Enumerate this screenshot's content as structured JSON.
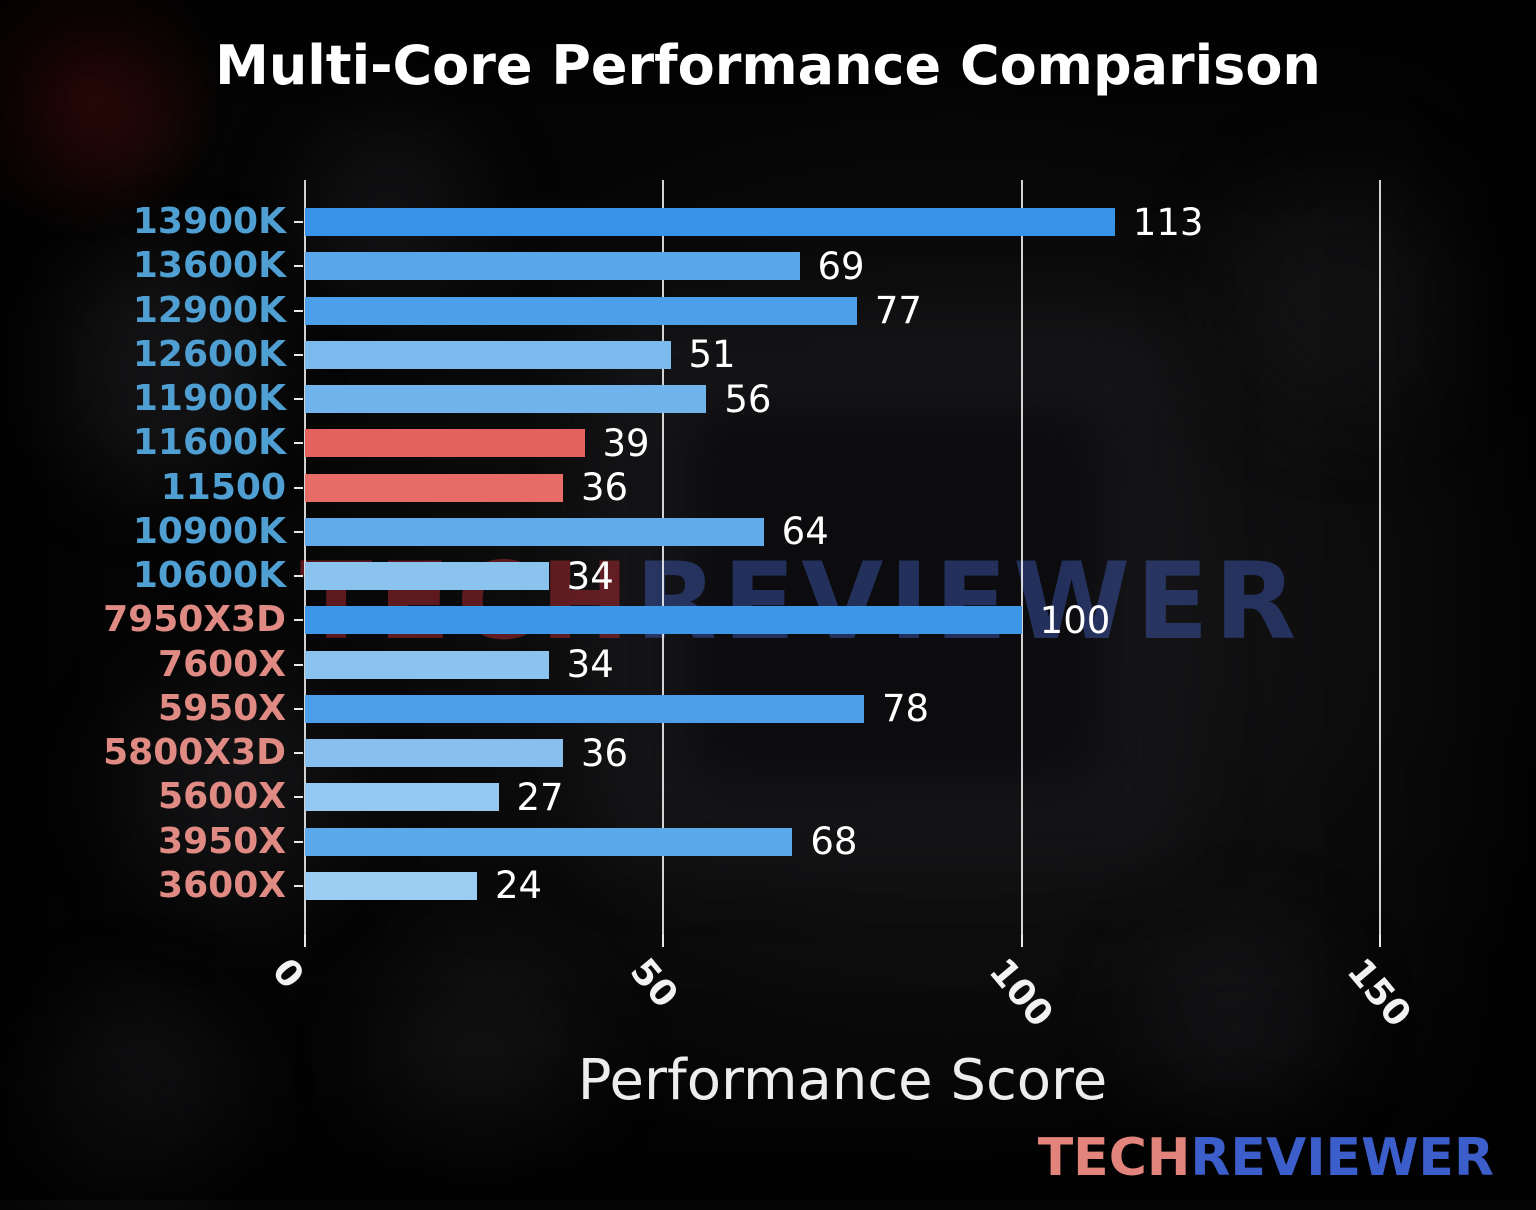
{
  "watermark": {
    "part1": "TECH",
    "part2": "REVIEWER"
  },
  "logo": {
    "part1": "TECH",
    "part2": "REVIEWER"
  },
  "chart_data": {
    "type": "bar",
    "orientation": "horizontal",
    "title": "Multi-Core Performance Comparison",
    "xlabel": "Performance Score",
    "ylabel": "",
    "xlim": [
      0,
      150
    ],
    "xticks": [
      "0",
      "50",
      "100",
      "150"
    ],
    "xtick_values": [
      0,
      50,
      100,
      150
    ],
    "grid": true,
    "legend": false,
    "background": "dark blurred CPU photo",
    "value_label_color": "#ffffff",
    "bars": [
      {
        "label": "13900K",
        "value": 113,
        "bar_color": "#3892e7",
        "label_color": "#4f9fd2"
      },
      {
        "label": "13600K",
        "value": 69,
        "bar_color": "#59a7ea",
        "label_color": "#4f9fd2"
      },
      {
        "label": "12900K",
        "value": 77,
        "bar_color": "#4e9fe9",
        "label_color": "#4f9fd2"
      },
      {
        "label": "12600K",
        "value": 51,
        "bar_color": "#7cbaed",
        "label_color": "#4f9fd2"
      },
      {
        "label": "11900K",
        "value": 56,
        "bar_color": "#71b4ec",
        "label_color": "#4f9fd2"
      },
      {
        "label": "11600K",
        "value": 39,
        "bar_color": "#e4625e",
        "label_color": "#4f9fd2"
      },
      {
        "label": "11500",
        "value": 36,
        "bar_color": "#e76b67",
        "label_color": "#4f9fd2"
      },
      {
        "label": "10900K",
        "value": 64,
        "bar_color": "#62abeb",
        "label_color": "#4f9fd2"
      },
      {
        "label": "10600K",
        "value": 34,
        "bar_color": "#8bc3ef",
        "label_color": "#4f9fd2"
      },
      {
        "label": "7950X3D",
        "value": 100,
        "bar_color": "#3d96e8",
        "label_color": "#df8b84"
      },
      {
        "label": "7600X",
        "value": 34,
        "bar_color": "#8bc3ef",
        "label_color": "#df8b84"
      },
      {
        "label": "5950X",
        "value": 78,
        "bar_color": "#4c9ee9",
        "label_color": "#df8b84"
      },
      {
        "label": "5800X3D",
        "value": 36,
        "bar_color": "#87c0ee",
        "label_color": "#df8b84"
      },
      {
        "label": "5600X",
        "value": 27,
        "bar_color": "#95c8f0",
        "label_color": "#df8b84"
      },
      {
        "label": "3950X",
        "value": 68,
        "bar_color": "#5ba8ea",
        "label_color": "#df8b84"
      },
      {
        "label": "3600X",
        "value": 24,
        "bar_color": "#9bcdf2",
        "label_color": "#df8b84"
      }
    ]
  }
}
